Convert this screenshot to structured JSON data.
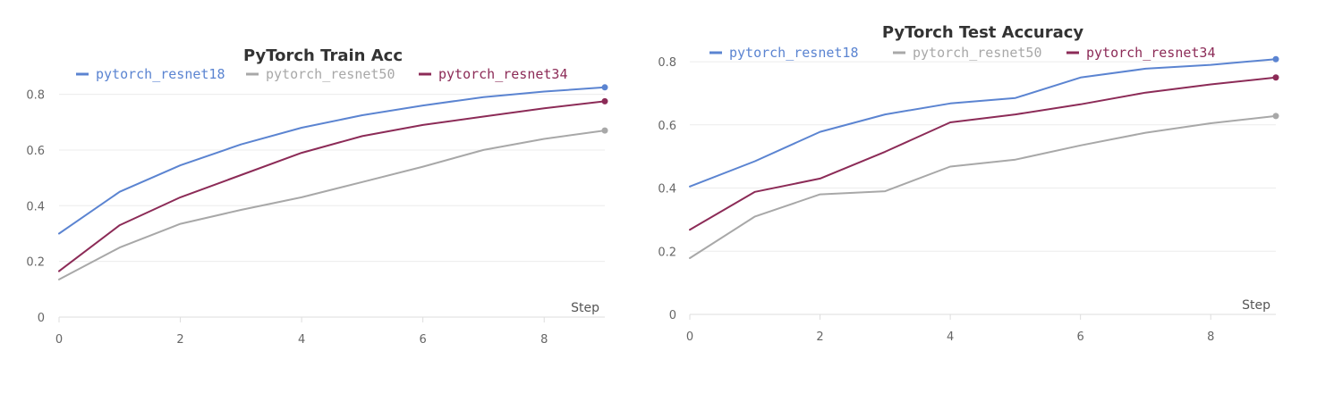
{
  "colors": {
    "pytorch_resnet18": "#5b84d1",
    "pytorch_resnet50": "#a8a8a8",
    "pytorch_resnet34": "#8c2b57"
  },
  "chart_data": [
    {
      "type": "line",
      "title": "PyTorch Train Acc",
      "xlabel": "Step",
      "ylabel": "",
      "xlim": [
        0,
        9
      ],
      "ylim": [
        0,
        0.85
      ],
      "xticks": [
        0,
        2,
        4,
        6,
        8
      ],
      "yticks": [
        0,
        0.2,
        0.4,
        0.6,
        0.8
      ],
      "x": [
        0,
        1,
        2,
        3,
        4,
        5,
        6,
        7,
        8,
        9
      ],
      "grid": true,
      "legend_position": "top",
      "series": [
        {
          "name": "pytorch_resnet18",
          "values": [
            0.3,
            0.45,
            0.545,
            0.62,
            0.68,
            0.725,
            0.76,
            0.79,
            0.81,
            0.825
          ]
        },
        {
          "name": "pytorch_resnet50",
          "values": [
            0.135,
            0.25,
            0.335,
            0.385,
            0.43,
            0.485,
            0.54,
            0.6,
            0.64,
            0.67
          ]
        },
        {
          "name": "pytorch_resnet34",
          "values": [
            0.165,
            0.33,
            0.43,
            0.51,
            0.59,
            0.65,
            0.69,
            0.72,
            0.75,
            0.775
          ]
        }
      ]
    },
    {
      "type": "line",
      "title": "PyTorch Test Accuracy",
      "xlabel": "Step",
      "ylabel": "",
      "xlim": [
        0,
        9
      ],
      "ylim": [
        0,
        0.82
      ],
      "xticks": [
        0,
        2,
        4,
        6,
        8
      ],
      "yticks": [
        0,
        0.2,
        0.4,
        0.6,
        0.8
      ],
      "x": [
        0,
        1,
        2,
        3,
        4,
        5,
        6,
        7,
        8,
        9
      ],
      "grid": true,
      "legend_position": "top",
      "series": [
        {
          "name": "pytorch_resnet18",
          "values": [
            0.405,
            0.485,
            0.578,
            0.633,
            0.668,
            0.685,
            0.75,
            0.778,
            0.79,
            0.808
          ]
        },
        {
          "name": "pytorch_resnet50",
          "values": [
            0.178,
            0.31,
            0.38,
            0.39,
            0.468,
            0.49,
            0.535,
            0.575,
            0.605,
            0.628
          ]
        },
        {
          "name": "pytorch_resnet34",
          "values": [
            0.268,
            0.388,
            0.43,
            0.515,
            0.608,
            0.633,
            0.665,
            0.702,
            0.728,
            0.75
          ]
        }
      ]
    }
  ]
}
